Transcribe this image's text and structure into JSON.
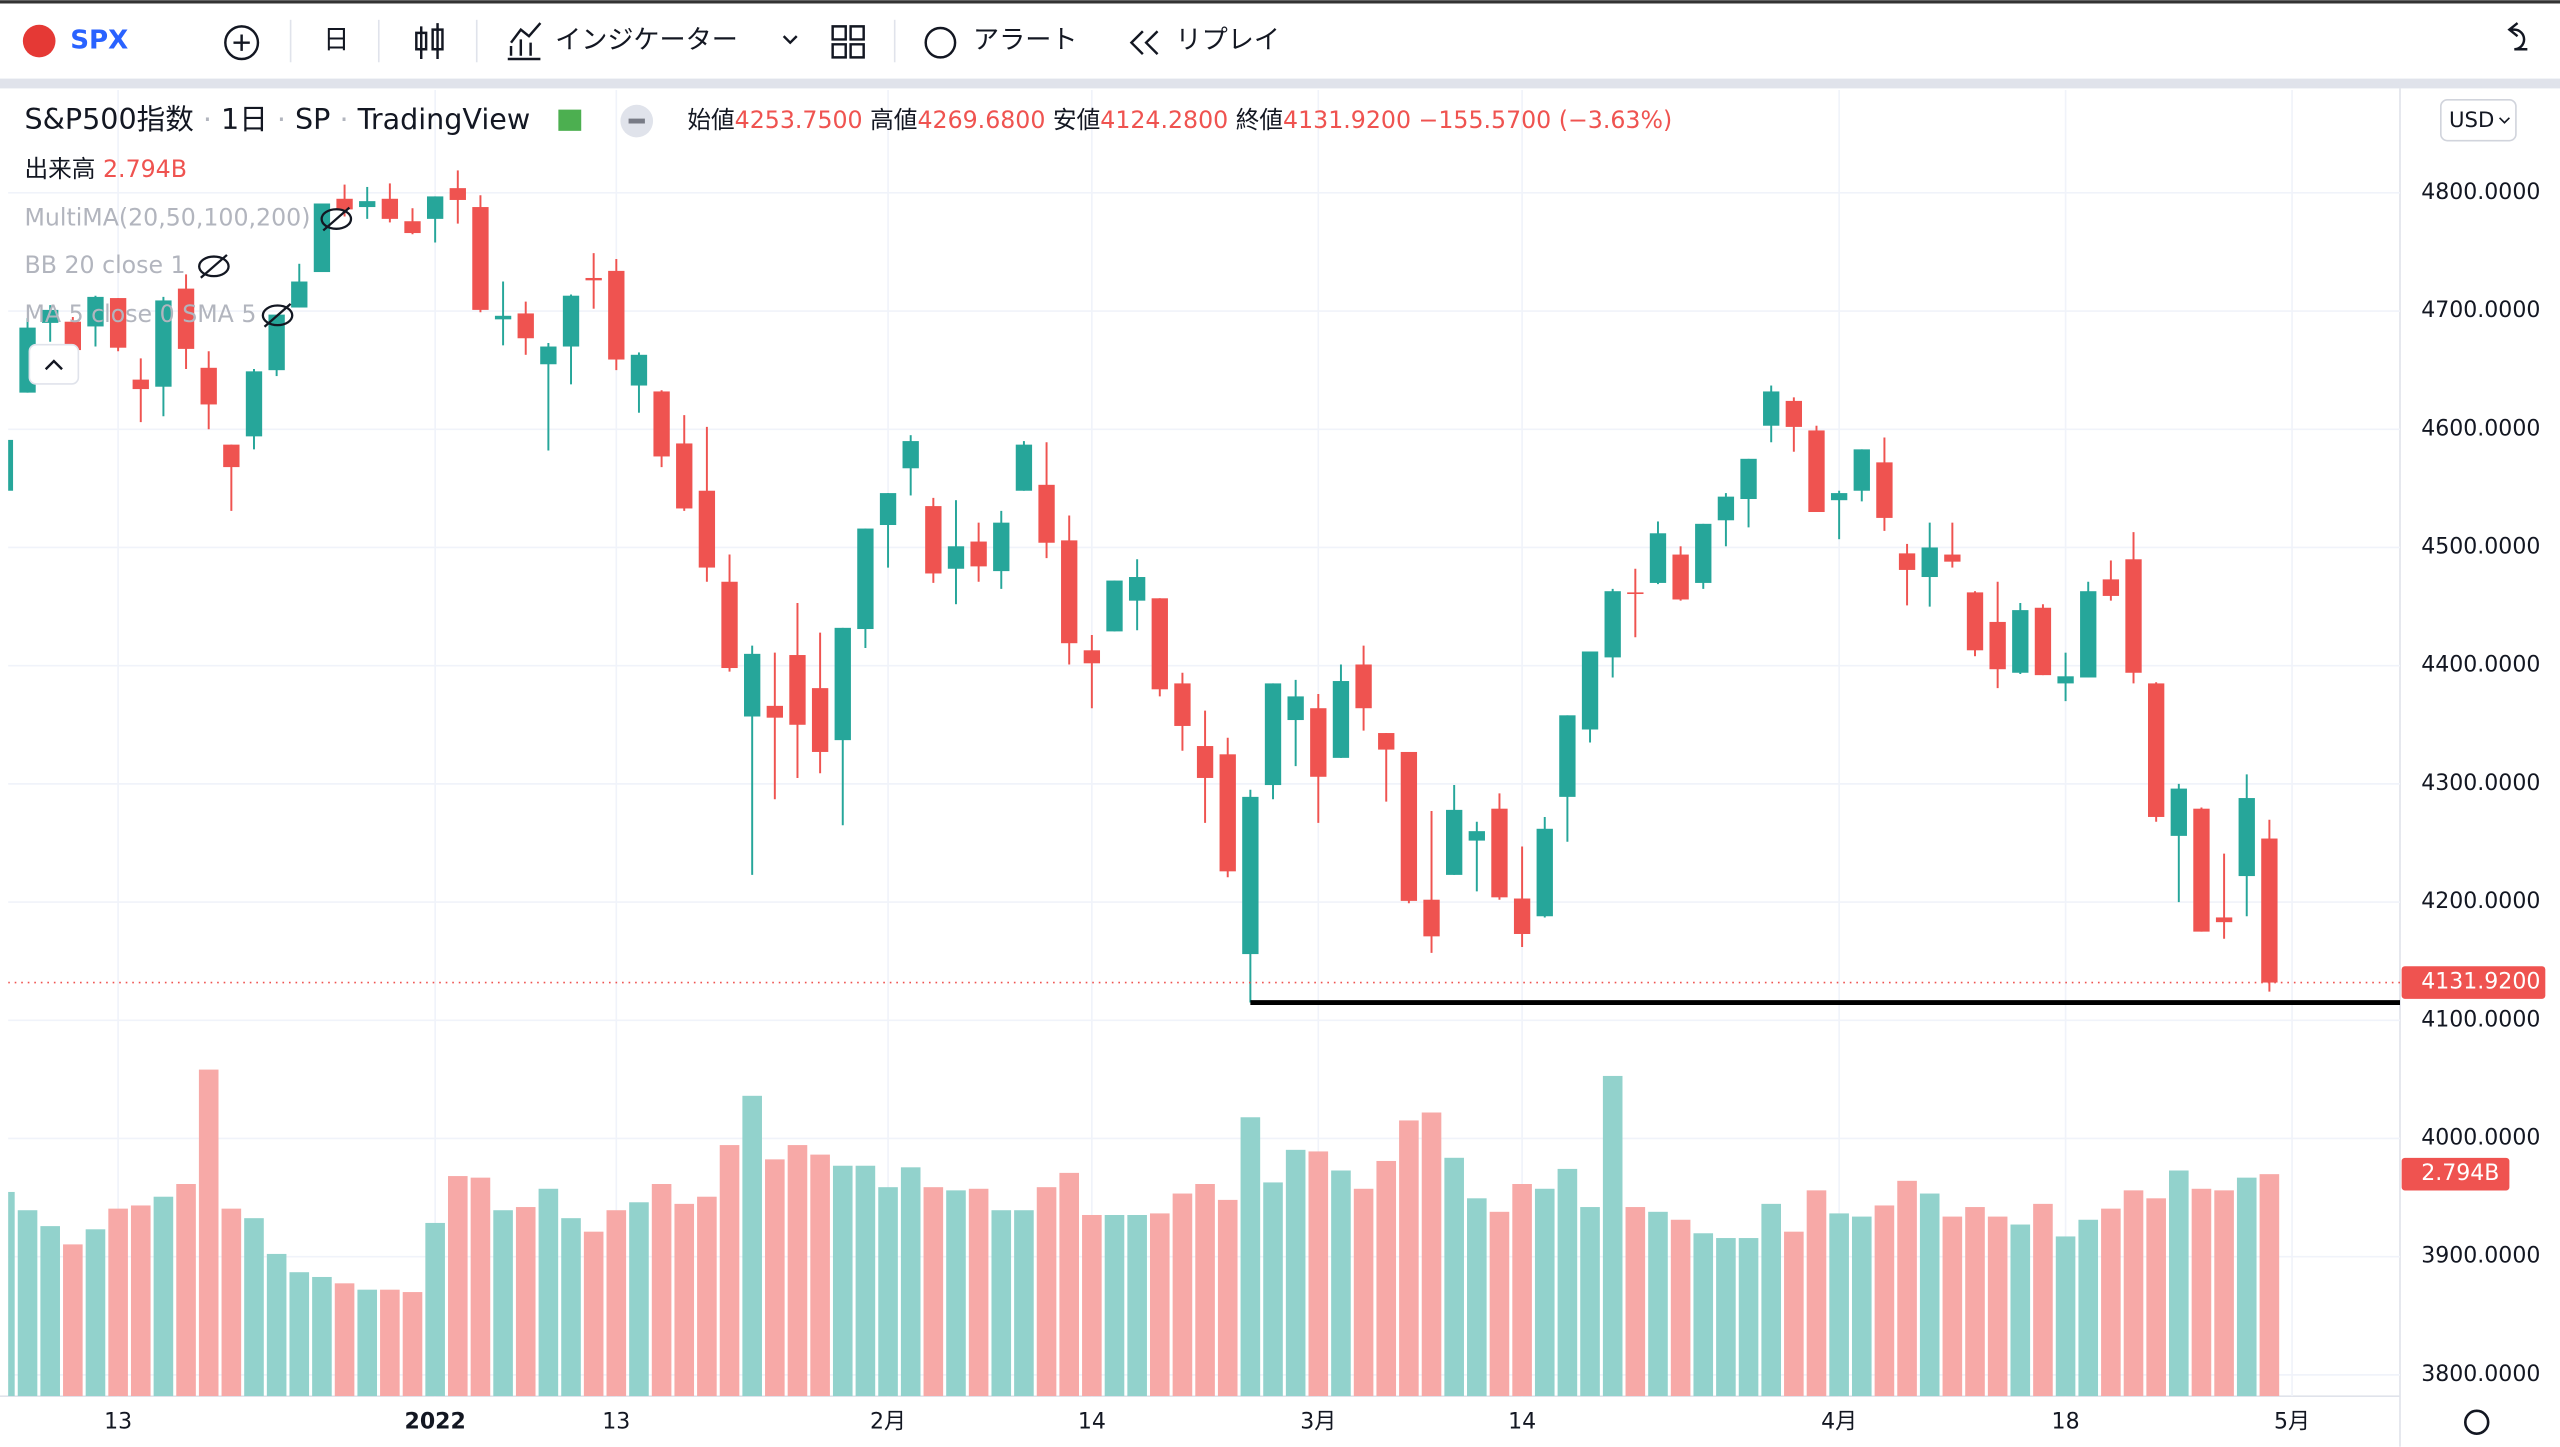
{
  "toolbar": {
    "symbol": "SPX",
    "interval": "日",
    "indicators": "インジケーター",
    "alert": "アラート",
    "replay": "リプレイ"
  },
  "legend": {
    "name": "S&P500指数",
    "interval": "1日",
    "exchange": "SP",
    "source": "TradingView",
    "open_label": "始値",
    "open": "4253.7500",
    "high_label": "高値",
    "high": "4269.6800",
    "low_label": "安値",
    "low": "4124.2800",
    "close_label": "終値",
    "close": "4131.9200",
    "change": "−155.5700 (−3.63%)",
    "volume_label": "出来高",
    "volume": "2.794B",
    "ma": "MultiMA(20,50,100,200)",
    "bb": "BB 20 close 1",
    "sma": "MA 5 close 0 SMA 5"
  },
  "currency": "USD",
  "chart_data": {
    "type": "candlestick",
    "up_color": "#26a69a",
    "down_color": "#ef5350",
    "up_volume_color": "#92d2cc",
    "down_volume_color": "#f7a9a7",
    "open": [
      4548,
      4631,
      4690,
      4691,
      4687,
      4711,
      4642,
      4636,
      4719,
      4652,
      4587,
      4594,
      4650,
      4703,
      4733,
      4795,
      4788,
      4795,
      4776,
      4778,
      4804,
      4788,
      4693,
      4698,
      4655,
      4670,
      4728,
      4734,
      4637,
      4632,
      4588,
      4548,
      4471,
      4357,
      4366,
      4409,
      4381,
      4337,
      4431,
      4519,
      4567,
      4535,
      4482,
      4505,
      4480,
      4548,
      4553,
      4506,
      4413,
      4429,
      4455,
      4457,
      4385,
      4332,
      4325,
      4156,
      4299,
      4354,
      4364,
      4322,
      4401,
      4343,
      4327,
      4202,
      4223,
      4252,
      4279,
      4203,
      4188,
      4289,
      4346,
      4407,
      4462,
      4470,
      4494,
      4470,
      4523,
      4541,
      4603,
      4624,
      4599,
      4540,
      4548,
      4572,
      4495,
      4475,
      4494,
      4462,
      4437,
      4394,
      4449,
      4385,
      4390,
      4473,
      4490,
      4385,
      4256,
      4279,
      4187,
      4222,
      4253.75
    ],
    "high": [
      4612,
      4694,
      4705,
      4695,
      4713,
      4711,
      4660,
      4712,
      4731,
      4666,
      4587,
      4651,
      4697,
      4740,
      4791,
      4807,
      4805,
      4808,
      4787,
      4797,
      4819,
      4798,
      4725,
      4708,
      4673,
      4714,
      4749,
      4744,
      4665,
      4633,
      4612,
      4602,
      4494,
      4417,
      4411,
      4453,
      4428,
      4432,
      4516,
      4546,
      4595,
      4542,
      4540,
      4521,
      4531,
      4590,
      4589,
      4527,
      4426,
      4472,
      4490,
      4457,
      4394,
      4362,
      4339,
      4295,
      4385,
      4388,
      4376,
      4401,
      4417,
      4343,
      4327,
      4277,
      4299,
      4268,
      4292,
      4247,
      4272,
      4358,
      4412,
      4465,
      4482,
      4522,
      4501,
      4520,
      4546,
      4575,
      4637,
      4627,
      4603,
      4548,
      4583,
      4593,
      4503,
      4521,
      4521,
      4463,
      4471,
      4453,
      4452,
      4411,
      4471,
      4489,
      4513,
      4386,
      4300,
      4280,
      4241,
      4308,
      4269.68
    ],
    "low": [
      4540,
      4631,
      4674,
      4665,
      4670,
      4666,
      4606,
      4611,
      4651,
      4600,
      4531,
      4583,
      4645,
      4703,
      4733,
      4780,
      4778,
      4775,
      4765,
      4758,
      4774,
      4699,
      4671,
      4663,
      4582,
      4638,
      4702,
      4650,
      4614,
      4568,
      4531,
      4471,
      4395,
      4223,
      4287,
      4305,
      4309,
      4265,
      4415,
      4483,
      4544,
      4470,
      4452,
      4471,
      4465,
      4548,
      4491,
      4401,
      4364,
      4429,
      4430,
      4374,
      4328,
      4267,
      4221,
      4115,
      4287,
      4315,
      4267,
      4322,
      4345,
      4285,
      4199,
      4157,
      4223,
      4209,
      4202,
      4162,
      4187,
      4251,
      4335,
      4390,
      4424,
      4469,
      4455,
      4465,
      4501,
      4517,
      4589,
      4581,
      4530,
      4507,
      4539,
      4514,
      4451,
      4450,
      4483,
      4408,
      4381,
      4393,
      4392,
      4370,
      4390,
      4455,
      4385,
      4268,
      4200,
      4175,
      4169,
      4188,
      4124.28
    ],
    "close": [
      4591,
      4686,
      4701,
      4667,
      4712,
      4669,
      4634,
      4709,
      4668,
      4621,
      4568,
      4649,
      4697,
      4725,
      4791,
      4786,
      4793,
      4778,
      4766,
      4797,
      4794,
      4701,
      4696,
      4677,
      4670,
      4713,
      4726,
      4659,
      4663,
      4577,
      4533,
      4483,
      4398,
      4410,
      4356,
      4350,
      4327,
      4432,
      4516,
      4546,
      4590,
      4478,
      4501,
      4484,
      4521,
      4587,
      4504,
      4419,
      4402,
      4472,
      4475,
      4380,
      4349,
      4305,
      4226,
      4289,
      4385,
      4374,
      4306,
      4387,
      4364,
      4329,
      4201,
      4171,
      4278,
      4260,
      4204,
      4173,
      4262,
      4358,
      4412,
      4463,
      4461,
      4512,
      4456,
      4520,
      4543,
      4575,
      4632,
      4602,
      4530,
      4546,
      4583,
      4525,
      4481,
      4500,
      4488,
      4413,
      4397,
      4447,
      4392,
      4391,
      4463,
      4459,
      4394,
      4272,
      4296,
      4175,
      4183,
      4288,
      4131.92
    ],
    "volume": [
      2.57,
      2.34,
      2.14,
      1.91,
      2.1,
      2.36,
      2.4,
      2.51,
      2.67,
      4.11,
      2.36,
      2.24,
      1.79,
      1.56,
      1.5,
      1.42,
      1.34,
      1.34,
      1.31,
      2.18,
      2.77,
      2.75,
      2.34,
      2.38,
      2.61,
      2.24,
      2.07,
      2.34,
      2.44,
      2.67,
      2.42,
      2.51,
      3.16,
      3.78,
      2.98,
      3.16,
      3.04,
      2.9,
      2.9,
      2.63,
      2.88,
      2.63,
      2.59,
      2.61,
      2.34,
      2.34,
      2.63,
      2.81,
      2.28,
      2.28,
      2.28,
      2.3,
      2.55,
      2.67,
      2.47,
      3.51,
      2.69,
      3.1,
      3.08,
      2.84,
      2.61,
      2.96,
      3.47,
      3.57,
      3.0,
      2.49,
      2.32,
      2.67,
      2.61,
      2.86,
      2.38,
      4.03,
      2.38,
      2.32,
      2.22,
      2.05,
      1.99,
      1.99,
      2.42,
      2.07,
      2.59,
      2.3,
      2.26,
      2.4,
      2.71,
      2.55,
      2.26,
      2.38,
      2.26,
      2.16,
      2.42,
      2.01,
      2.22,
      2.36,
      2.59,
      2.49,
      2.84,
      2.61,
      2.59,
      2.75,
      2.794
    ],
    "last_label": "4131.9200",
    "volume_label": "2.794B",
    "ylim": [
      3782,
      4887
    ],
    "yticks": [
      {
        "value": 3800,
        "label": "3800.0000"
      },
      {
        "value": 3900,
        "label": "3900.0000"
      },
      {
        "value": 4000,
        "label": "4000.0000"
      },
      {
        "value": 4100,
        "label": "4100.0000"
      },
      {
        "value": 4200,
        "label": "4200.0000"
      },
      {
        "value": 4300,
        "label": "4300.0000"
      },
      {
        "value": 4400,
        "label": "4400.0000"
      },
      {
        "value": 4500,
        "label": "4500.0000"
      },
      {
        "value": 4600,
        "label": "4600.0000"
      },
      {
        "value": 4700,
        "label": "4700.0000"
      },
      {
        "value": 4800,
        "label": "4800.0000"
      }
    ],
    "vlim": [
      0,
      4.5
    ],
    "xticks": [
      {
        "value": 5,
        "label": "13"
      },
      {
        "value": 19,
        "label": "2022"
      },
      {
        "value": 27,
        "label": "13"
      },
      {
        "value": 39,
        "label": "2月"
      },
      {
        "value": 48,
        "label": "14"
      },
      {
        "value": 58,
        "label": "3月"
      },
      {
        "value": 67,
        "label": "14"
      },
      {
        "value": 81,
        "label": "4月"
      },
      {
        "value": 91,
        "label": "18"
      },
      {
        "value": 101,
        "label": "5月"
      }
    ],
    "grid": true
  }
}
